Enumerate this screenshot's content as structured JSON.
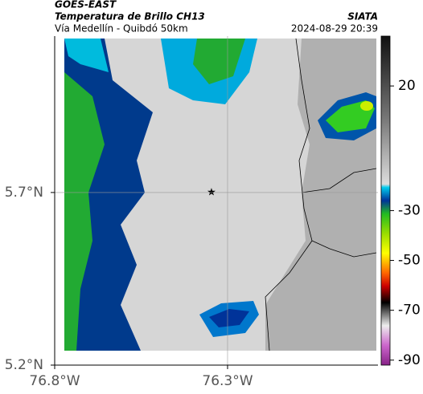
{
  "header": {
    "source": "GOES-EAST",
    "title": "Temperatura de Brillo CH13",
    "subtitle": "Vía Medellín - Quibdó 50km",
    "credit": "SIATA",
    "timestamp": "2024-08-29 20:39"
  },
  "map": {
    "xlim": [
      -76.8,
      -75.865
    ],
    "ylim": [
      5.2,
      6.153
    ],
    "xticks": [
      {
        "value": -76.8,
        "label": "76.8°W"
      },
      {
        "value": -76.3,
        "label": "76.3°W"
      }
    ],
    "yticks": [
      {
        "value": 5.2,
        "label": "5.2°N"
      },
      {
        "value": 5.7,
        "label": "5.7°N"
      }
    ],
    "grid": true
  },
  "colorbar": {
    "clim": [
      -92,
      40
    ],
    "ticks": [
      20,
      -30,
      -50,
      -70,
      -90
    ]
  }
}
